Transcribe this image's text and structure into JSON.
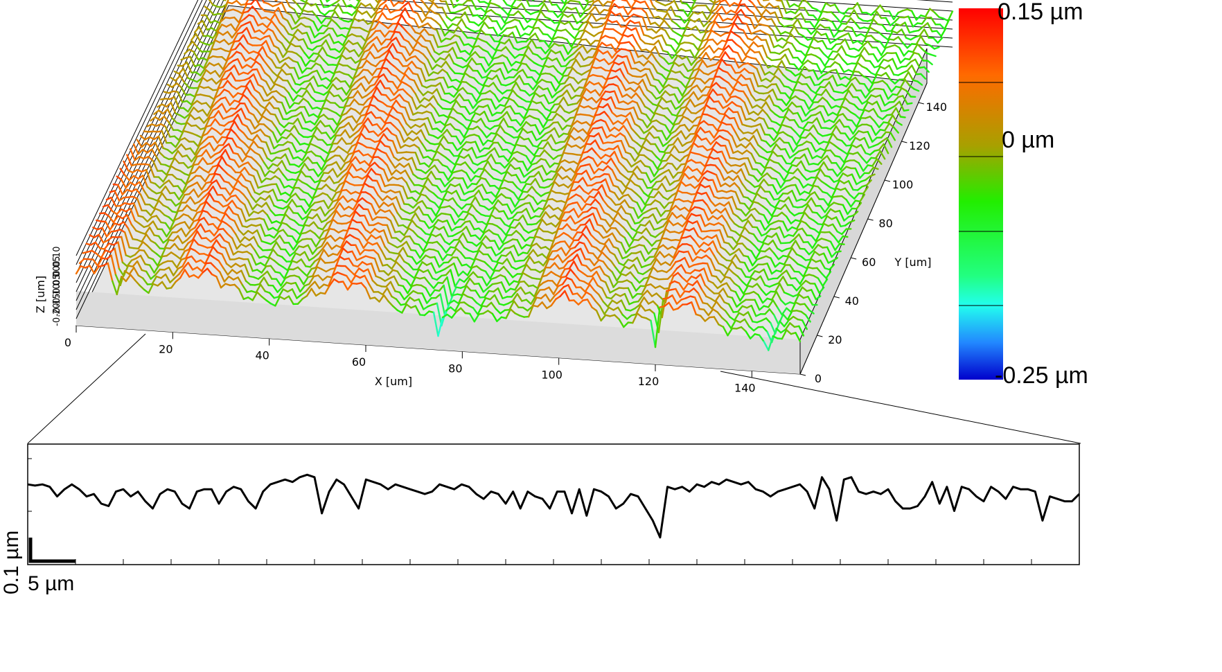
{
  "chart_data": [
    {
      "type": "surface3d",
      "x_axis": {
        "label": "X [um]",
        "ticks": [
          "0",
          "20",
          "40",
          "60",
          "80",
          "100",
          "120",
          "140"
        ],
        "range": [
          0,
          150
        ]
      },
      "y_axis": {
        "label": "Y [um]",
        "ticks": [
          "0",
          "20",
          "40",
          "60",
          "80",
          "100",
          "120",
          "140"
        ],
        "range": [
          0,
          150
        ]
      },
      "z_axis": {
        "label": "Z [um]",
        "ticks": [
          "0.10",
          "0.05",
          "0.00",
          "-0.05",
          "-0.10",
          "-0.15",
          "-0.20"
        ],
        "range": [
          -0.25,
          0.15
        ]
      },
      "ridge_peaks_x_um": [
        5,
        26,
        56,
        102,
        125
      ],
      "deep_pits_x_um": [
        8,
        75,
        120,
        143
      ],
      "colorbar": {
        "labels": {
          "max": "0.15 µm",
          "mid": "0 µm",
          "min": "-0.25 µm"
        },
        "range": [
          -0.25,
          0.15
        ],
        "colors": [
          "#ff0000",
          "#ff6a00",
          "#a8a000",
          "#22ee00",
          "#22ffee",
          "#2288ff",
          "#0000cc"
        ]
      },
      "grid": true
    },
    {
      "type": "line",
      "title": "",
      "scale_bar": {
        "x_label": "5 µm",
        "y_label": "0.1 µm",
        "x_value_um": 5,
        "y_value_um": 0.1
      },
      "x_range_um": [
        0,
        110
      ],
      "series": [
        {
          "values": [
            0.05,
            0.045,
            0.05,
            0.04,
            0.0,
            0.03,
            0.05,
            0.03,
            0.0,
            0.01,
            -0.03,
            -0.04,
            0.02,
            0.03,
            0.0,
            0.02,
            -0.02,
            -0.05,
            0.01,
            0.03,
            0.02,
            -0.03,
            -0.05,
            0.02,
            0.03,
            0.03,
            -0.03,
            0.02,
            0.04,
            0.03,
            -0.02,
            -0.05,
            0.02,
            0.05,
            0.06,
            0.07,
            0.06,
            0.08,
            0.09,
            0.08,
            -0.07,
            0.02,
            0.07,
            0.05,
            0.0,
            -0.05,
            0.07,
            0.06,
            0.05,
            0.03,
            0.05,
            0.04,
            0.03,
            0.02,
            0.01,
            0.02,
            0.05,
            0.04,
            0.03,
            0.05,
            0.04,
            0.01,
            -0.01,
            0.02,
            0.01,
            -0.03,
            0.02,
            -0.05,
            0.02,
            0.0,
            -0.01,
            -0.05,
            0.02,
            0.02,
            -0.07,
            0.03,
            -0.08,
            0.03,
            0.02,
            0.0,
            -0.05,
            -0.03,
            0.01,
            0.0,
            -0.05,
            -0.1,
            -0.17,
            0.04,
            0.03,
            0.04,
            0.02,
            0.05,
            0.04,
            0.06,
            0.05,
            0.07,
            0.06,
            0.05,
            0.06,
            0.03,
            0.02,
            0.0,
            0.02,
            0.03,
            0.04,
            0.05,
            0.02,
            -0.05,
            0.08,
            0.03,
            -0.1,
            0.07,
            0.08,
            0.02,
            0.01,
            0.02,
            0.01,
            0.03,
            -0.02,
            -0.05,
            -0.05,
            -0.04,
            0.0,
            0.06,
            -0.03,
            0.04,
            -0.06,
            0.04,
            0.03,
            0.0,
            -0.02,
            0.04,
            0.02,
            -0.01,
            0.04,
            0.03,
            0.03,
            0.02,
            -0.1,
            0.0,
            -0.01,
            -0.02,
            -0.02,
            0.01
          ],
          "x_range": [
            0,
            110
          ]
        }
      ],
      "xlabel": "",
      "ylabel": "",
      "ylim": [
        -0.25,
        0.2
      ],
      "x_ticks_count": 22
    }
  ]
}
